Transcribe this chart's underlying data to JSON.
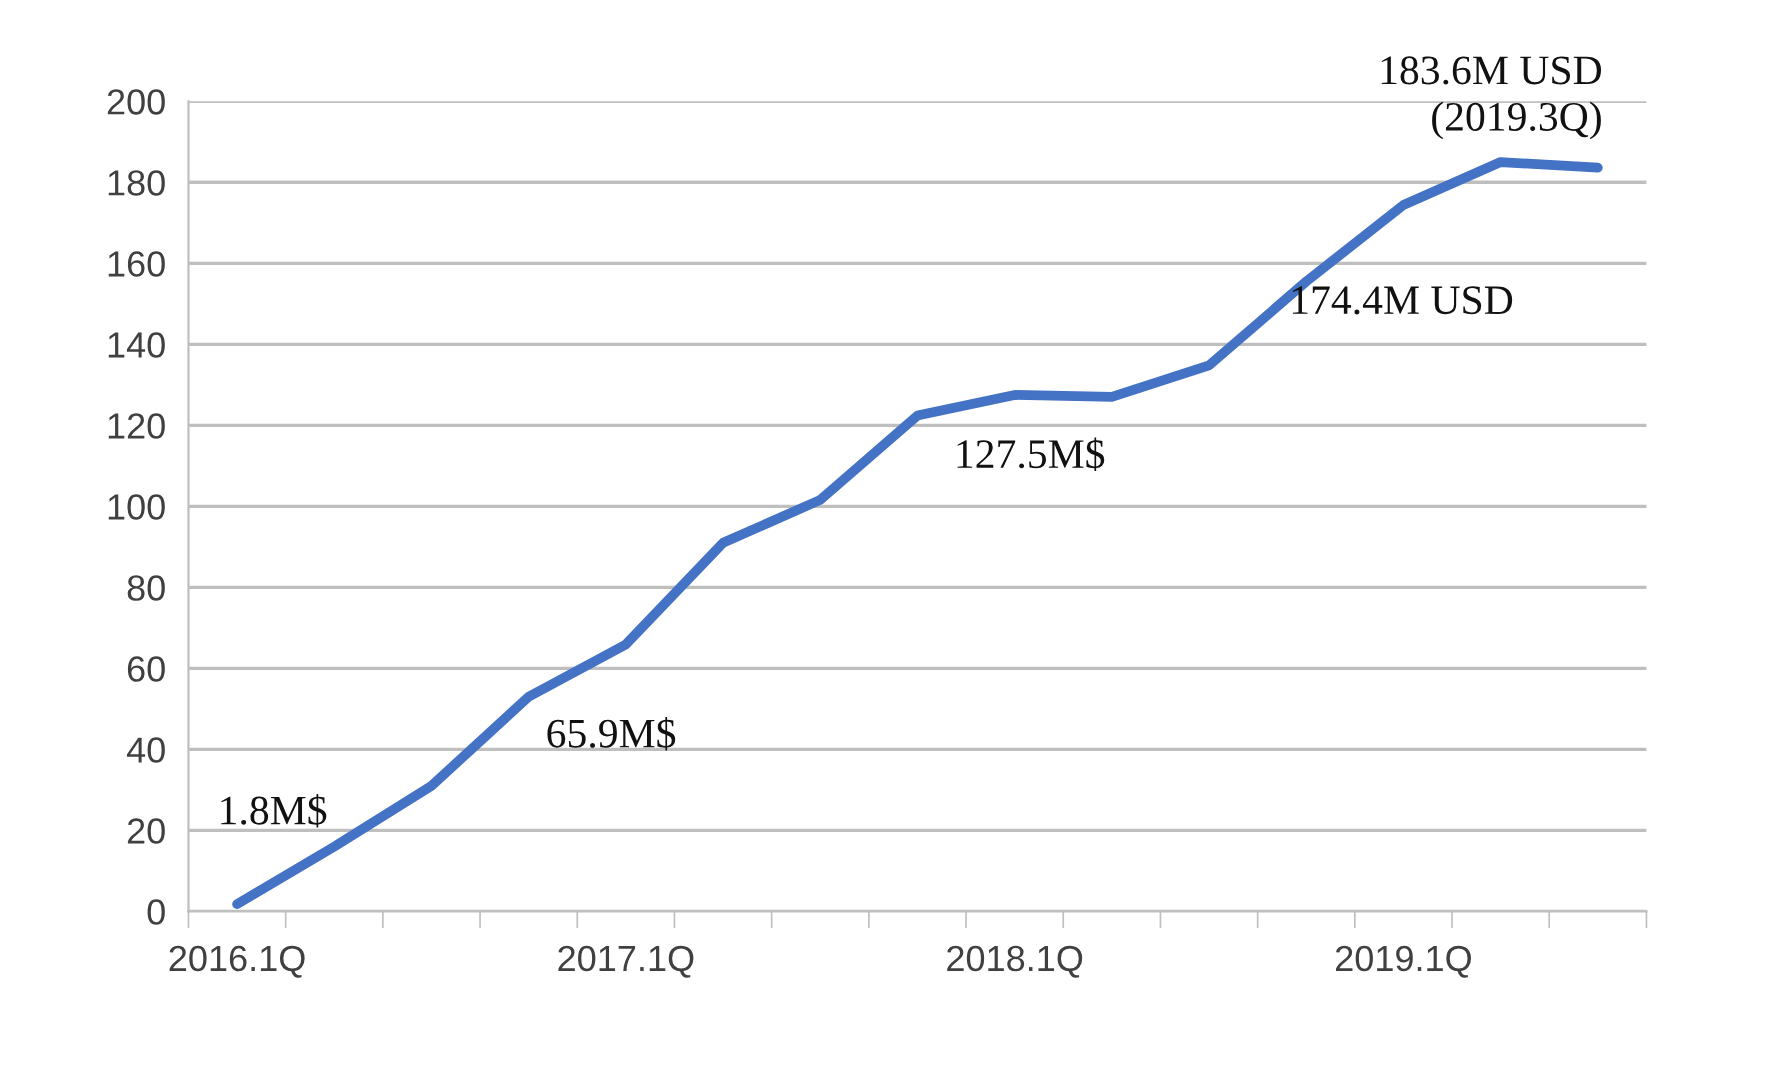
{
  "chart_data": {
    "type": "line",
    "categories": [
      "2016.1Q",
      null,
      null,
      null,
      "2017.1Q",
      null,
      null,
      null,
      "2018.1Q",
      null,
      null,
      null,
      "2019.1Q",
      null,
      null
    ],
    "series": [
      {
        "color": "#4472c4",
        "values": [
          1.8,
          16,
          31,
          53,
          65.9,
          91,
          101.6,
          122.4,
          127.5,
          127,
          134.8,
          155.5,
          174.4,
          185,
          183.6
        ]
      }
    ],
    "ylim": [
      0,
      200
    ],
    "yticks": [
      0,
      20,
      40,
      60,
      80,
      100,
      120,
      140,
      160,
      180,
      200
    ],
    "grid": "y",
    "marker": "none",
    "line_style": "solid",
    "annotations": [
      "1.8M$",
      "65.9M$",
      "127.5M$",
      "174.4M USD",
      "183.6M USD\n(2019.3Q)"
    ]
  }
}
